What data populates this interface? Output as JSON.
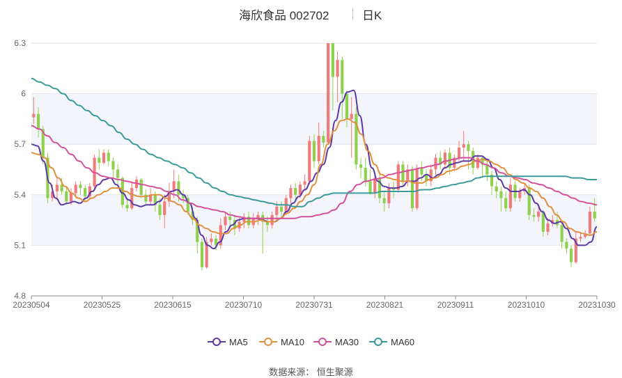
{
  "header": {
    "title": "海欣食品 002702",
    "period": "日K"
  },
  "source_label": "数据来源：  恒生聚源",
  "colors": {
    "up": "#f07b7b",
    "down": "#8fd14f",
    "ma5": "#5b3aa6",
    "ma10": "#e0903f",
    "ma30": "#d4509a",
    "ma60": "#3a9a9a"
  },
  "legend": [
    {
      "key": "ma5",
      "label": "MA5"
    },
    {
      "key": "ma10",
      "label": "MA10"
    },
    {
      "key": "ma30",
      "label": "MA30"
    },
    {
      "key": "ma60",
      "label": "MA60"
    }
  ],
  "chart_data": {
    "type": "candlestick",
    "title": "海欣食品 002702 日K",
    "ylim": [
      4.8,
      6.3
    ],
    "yticks": [
      4.8,
      5.1,
      5.4,
      5.7,
      6,
      6.3
    ],
    "xlim": [
      "20230504",
      "20231030"
    ],
    "xticks": [
      "20230504",
      "20230525",
      "20230615",
      "20230710",
      "20230731",
      "20230821",
      "20230911",
      "20231010",
      "20231030"
    ],
    "grid": true,
    "legend_position": "bottom",
    "candles": [
      [
        5.86,
        5.88,
        5.82,
        5.98
      ],
      [
        5.88,
        5.79,
        5.74,
        5.92
      ],
      [
        5.79,
        5.62,
        5.58,
        5.81
      ],
      [
        5.62,
        5.38,
        5.35,
        5.65
      ],
      [
        5.38,
        5.42,
        5.36,
        5.46
      ],
      [
        5.42,
        5.46,
        5.38,
        5.5
      ],
      [
        5.46,
        5.42,
        5.4,
        5.5
      ],
      [
        5.42,
        5.36,
        5.34,
        5.45
      ],
      [
        5.36,
        5.41,
        5.34,
        5.44
      ],
      [
        5.41,
        5.46,
        5.38,
        5.48
      ],
      [
        5.46,
        5.44,
        5.4,
        5.48
      ],
      [
        5.44,
        5.39,
        5.36,
        5.46
      ],
      [
        5.39,
        5.45,
        5.37,
        5.47
      ],
      [
        5.45,
        5.62,
        5.43,
        5.64
      ],
      [
        5.62,
        5.59,
        5.55,
        5.67
      ],
      [
        5.59,
        5.65,
        5.58,
        5.67
      ],
      [
        5.65,
        5.6,
        5.57,
        5.67
      ],
      [
        5.6,
        5.55,
        5.5,
        5.62
      ],
      [
        5.55,
        5.5,
        5.45,
        5.58
      ],
      [
        5.5,
        5.34,
        5.32,
        5.51
      ],
      [
        5.34,
        5.32,
        5.3,
        5.38
      ],
      [
        5.32,
        5.44,
        5.31,
        5.48
      ],
      [
        5.44,
        5.49,
        5.42,
        5.51
      ],
      [
        5.49,
        5.4,
        5.38,
        5.5
      ],
      [
        5.4,
        5.36,
        5.34,
        5.43
      ],
      [
        5.36,
        5.4,
        5.34,
        5.44
      ],
      [
        5.4,
        5.34,
        5.3,
        5.42
      ],
      [
        5.34,
        5.28,
        5.25,
        5.38
      ],
      [
        5.28,
        5.36,
        5.2,
        5.4
      ],
      [
        5.36,
        5.42,
        5.33,
        5.47
      ],
      [
        5.42,
        5.48,
        5.38,
        5.55
      ],
      [
        5.48,
        5.4,
        5.36,
        5.52
      ],
      [
        5.4,
        5.38,
        5.35,
        5.43
      ],
      [
        5.38,
        5.3,
        5.28,
        5.4
      ],
      [
        5.3,
        5.25,
        5.22,
        5.33
      ],
      [
        5.25,
        5.12,
        5.05,
        5.27
      ],
      [
        5.12,
        4.97,
        4.95,
        5.14
      ],
      [
        4.97,
        5.12,
        4.96,
        5.15
      ],
      [
        5.12,
        5.14,
        5.1,
        5.17
      ],
      [
        5.14,
        5.1,
        5.07,
        5.16
      ],
      [
        5.1,
        5.22,
        5.08,
        5.26
      ],
      [
        5.22,
        5.27,
        5.19,
        5.3
      ],
      [
        5.27,
        5.25,
        5.2,
        5.3
      ],
      [
        5.25,
        5.2,
        5.16,
        5.28
      ],
      [
        5.2,
        5.24,
        5.18,
        5.27
      ],
      [
        5.24,
        5.27,
        5.2,
        5.29
      ],
      [
        5.27,
        5.22,
        5.2,
        5.3
      ],
      [
        5.22,
        5.26,
        5.2,
        5.29
      ],
      [
        5.26,
        5.28,
        5.22,
        5.3
      ],
      [
        5.28,
        5.24,
        5.05,
        5.3
      ],
      [
        5.24,
        5.22,
        5.18,
        5.27
      ],
      [
        5.22,
        5.28,
        5.2,
        5.3
      ],
      [
        5.28,
        5.33,
        5.25,
        5.36
      ],
      [
        5.33,
        5.3,
        5.26,
        5.36
      ],
      [
        5.3,
        5.38,
        5.28,
        5.4
      ],
      [
        5.38,
        5.44,
        5.35,
        5.46
      ],
      [
        5.44,
        5.4,
        5.37,
        5.47
      ],
      [
        5.4,
        5.46,
        5.38,
        5.48
      ],
      [
        5.46,
        5.48,
        5.43,
        5.52
      ],
      [
        5.48,
        5.72,
        5.46,
        5.75
      ],
      [
        5.72,
        5.6,
        5.56,
        5.76
      ],
      [
        5.6,
        5.75,
        5.58,
        5.83
      ],
      [
        5.75,
        5.71,
        5.68,
        5.78
      ],
      [
        5.71,
        6.3,
        5.7,
        6.3
      ],
      [
        6.3,
        6.1,
        5.9,
        6.3
      ],
      [
        6.1,
        6.2,
        5.95,
        6.25
      ],
      [
        6.2,
        6.0,
        5.85,
        6.22
      ],
      [
        6.0,
        5.85,
        5.8,
        6.02
      ],
      [
        5.85,
        5.88,
        5.62,
        5.98
      ],
      [
        5.88,
        5.58,
        5.55,
        5.92
      ],
      [
        5.58,
        5.56,
        5.5,
        5.62
      ],
      [
        5.56,
        5.48,
        5.45,
        5.62
      ],
      [
        5.48,
        5.41,
        5.4,
        5.55
      ],
      [
        5.41,
        5.5,
        5.38,
        5.53
      ],
      [
        5.5,
        5.38,
        5.35,
        5.54
      ],
      [
        5.38,
        5.35,
        5.3,
        5.42
      ],
      [
        5.35,
        5.44,
        5.32,
        5.47
      ],
      [
        5.44,
        5.43,
        5.38,
        5.48
      ],
      [
        5.43,
        5.58,
        5.41,
        5.6
      ],
      [
        5.58,
        5.48,
        5.45,
        5.6
      ],
      [
        5.48,
        5.55,
        5.45,
        5.58
      ],
      [
        5.55,
        5.32,
        5.3,
        5.57
      ],
      [
        5.32,
        5.56,
        5.31,
        5.58
      ],
      [
        5.56,
        5.52,
        5.48,
        5.6
      ],
      [
        5.52,
        5.48,
        5.45,
        5.55
      ],
      [
        5.48,
        5.55,
        5.45,
        5.58
      ],
      [
        5.55,
        5.62,
        5.52,
        5.64
      ],
      [
        5.62,
        5.58,
        5.55,
        5.66
      ],
      [
        5.58,
        5.65,
        5.56,
        5.67
      ],
      [
        5.65,
        5.56,
        5.52,
        5.68
      ],
      [
        5.56,
        5.62,
        5.54,
        5.64
      ],
      [
        5.62,
        5.68,
        5.6,
        5.72
      ],
      [
        5.68,
        5.7,
        5.6,
        5.78
      ],
      [
        5.7,
        5.66,
        5.55,
        5.72
      ],
      [
        5.66,
        5.56,
        5.52,
        5.68
      ],
      [
        5.56,
        5.62,
        5.55,
        5.64
      ],
      [
        5.62,
        5.58,
        5.5,
        5.63
      ],
      [
        5.58,
        5.52,
        5.48,
        5.6
      ],
      [
        5.52,
        5.45,
        5.4,
        5.54
      ],
      [
        5.45,
        5.42,
        5.38,
        5.48
      ],
      [
        5.42,
        5.38,
        5.3,
        5.45
      ],
      [
        5.38,
        5.32,
        5.3,
        5.42
      ],
      [
        5.32,
        5.46,
        5.3,
        5.5
      ],
      [
        5.46,
        5.38,
        5.36,
        5.48
      ],
      [
        5.38,
        5.42,
        5.36,
        5.44
      ],
      [
        5.42,
        5.44,
        5.4,
        5.46
      ],
      [
        5.44,
        5.28,
        5.25,
        5.46
      ],
      [
        5.28,
        5.27,
        5.24,
        5.32
      ],
      [
        5.27,
        5.3,
        5.24,
        5.33
      ],
      [
        5.3,
        5.18,
        5.15,
        5.31
      ],
      [
        5.18,
        5.23,
        5.16,
        5.26
      ],
      [
        5.23,
        5.25,
        5.21,
        5.28
      ],
      [
        5.25,
        5.22,
        5.2,
        5.3
      ],
      [
        5.22,
        5.12,
        5.08,
        5.24
      ],
      [
        5.12,
        5.08,
        5.05,
        5.14
      ],
      [
        5.08,
        5.0,
        4.97,
        5.1
      ],
      [
        5.0,
        5.14,
        4.99,
        5.18
      ],
      [
        5.14,
        5.15,
        5.12,
        5.18
      ],
      [
        5.15,
        5.17,
        5.14,
        5.19
      ],
      [
        5.17,
        5.3,
        5.16,
        5.33
      ],
      [
        5.3,
        5.26,
        5.24,
        5.38
      ]
    ],
    "series": [
      {
        "name": "MA5",
        "values": [
          5.7,
          5.69,
          5.6,
          5.47,
          5.38,
          5.34,
          5.35,
          5.36,
          5.35,
          5.38,
          5.42,
          5.46,
          5.49,
          5.5,
          5.46,
          5.41,
          5.37,
          5.34,
          5.33,
          5.34,
          5.34,
          5.36,
          5.39,
          5.42,
          5.43,
          5.4,
          5.35,
          5.26,
          5.16,
          5.1,
          5.08,
          5.12,
          5.18,
          5.22,
          5.25,
          5.26,
          5.26,
          5.26,
          5.25,
          5.24,
          5.24,
          5.26,
          5.3,
          5.35,
          5.39,
          5.43,
          5.48,
          5.53,
          5.58,
          5.68,
          5.84,
          5.95,
          6.01,
          6.02,
          5.87,
          5.7,
          5.56,
          5.48,
          5.45,
          5.44,
          5.44,
          5.45,
          5.48,
          5.48,
          5.5,
          5.52,
          5.5,
          5.52,
          5.56,
          5.58,
          5.59,
          5.6,
          5.6,
          5.63,
          5.63,
          5.61,
          5.56,
          5.49,
          5.44,
          5.42,
          5.42,
          5.43,
          5.4,
          5.35,
          5.3,
          5.25,
          5.23,
          5.24,
          5.2,
          5.14,
          5.1,
          5.1,
          5.12,
          5.21
        ]
      },
      {
        "name": "MA10",
        "values": [
          5.65,
          5.64,
          5.62,
          5.56,
          5.5,
          5.45,
          5.41,
          5.38,
          5.36,
          5.38,
          5.4,
          5.42,
          5.44,
          5.44,
          5.42,
          5.4,
          5.39,
          5.39,
          5.4,
          5.4,
          5.38,
          5.36,
          5.34,
          5.3,
          5.26,
          5.22,
          5.2,
          5.18,
          5.17,
          5.17,
          5.2,
          5.22,
          5.24,
          5.24,
          5.25,
          5.24,
          5.24,
          5.26,
          5.29,
          5.32,
          5.36,
          5.4,
          5.46,
          5.58,
          5.7,
          5.78,
          5.84,
          5.85,
          5.83,
          5.76,
          5.66,
          5.58,
          5.52,
          5.5,
          5.49,
          5.48,
          5.48,
          5.47,
          5.47,
          5.49,
          5.5,
          5.52,
          5.54,
          5.55,
          5.57,
          5.58,
          5.6,
          5.61,
          5.6,
          5.58,
          5.56,
          5.52,
          5.49,
          5.47,
          5.44,
          5.42,
          5.38,
          5.33,
          5.28,
          5.24,
          5.2,
          5.18,
          5.17,
          5.16,
          5.18
        ]
      },
      {
        "name": "MA30",
        "values": [
          5.81,
          5.79,
          5.75,
          5.71,
          5.68,
          5.64,
          5.6,
          5.56,
          5.53,
          5.51,
          5.5,
          5.49,
          5.48,
          5.47,
          5.46,
          5.45,
          5.44,
          5.42,
          5.4,
          5.37,
          5.35,
          5.33,
          5.32,
          5.31,
          5.3,
          5.28,
          5.27,
          5.26,
          5.26,
          5.26,
          5.26,
          5.26,
          5.26,
          5.26,
          5.27,
          5.27,
          5.28,
          5.29,
          5.31,
          5.35,
          5.42,
          5.46,
          5.48,
          5.49,
          5.5,
          5.52,
          5.53,
          5.54,
          5.55,
          5.56,
          5.57,
          5.58,
          5.6,
          5.61,
          5.62,
          5.62,
          5.6,
          5.58,
          5.56,
          5.53,
          5.51,
          5.5,
          5.49,
          5.47,
          5.46,
          5.44,
          5.42,
          5.4,
          5.38,
          5.36,
          5.35,
          5.34
        ]
      },
      {
        "name": "MA60",
        "values": [
          6.09,
          6.07,
          6.05,
          6.03,
          6.0,
          5.96,
          5.93,
          5.9,
          5.87,
          5.84,
          5.81,
          5.77,
          5.73,
          5.7,
          5.67,
          5.64,
          5.62,
          5.6,
          5.58,
          5.56,
          5.53,
          5.5,
          5.47,
          5.44,
          5.42,
          5.4,
          5.39,
          5.38,
          5.37,
          5.36,
          5.35,
          5.34,
          5.34,
          5.33,
          5.33,
          5.36,
          5.38,
          5.4,
          5.41,
          5.41,
          5.41,
          5.41,
          5.41,
          5.41,
          5.42,
          5.42,
          5.42,
          5.42,
          5.42,
          5.43,
          5.43,
          5.44,
          5.45,
          5.46,
          5.47,
          5.48,
          5.5,
          5.51,
          5.51,
          5.51,
          5.51,
          5.51,
          5.51,
          5.51,
          5.51,
          5.51,
          5.51,
          5.51,
          5.5,
          5.5,
          5.49,
          5.49
        ]
      }
    ]
  }
}
